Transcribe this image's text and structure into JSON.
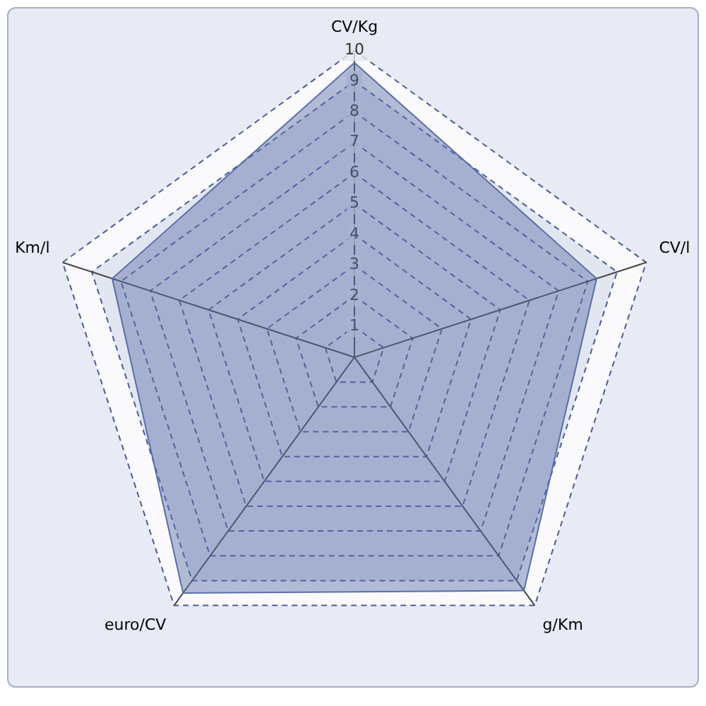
{
  "chart_data": {
    "type": "radar",
    "categories": [
      "CV/Kg",
      "CV/l",
      "g/Km",
      "euro/CV",
      "Km/l"
    ],
    "series": [
      {
        "color": "#5a6ea8",
        "values": [
          9.6,
          8.3,
          9.4,
          9.5,
          8.3
        ]
      }
    ],
    "ylim": [
      0,
      10
    ],
    "yticks": [
      1,
      2,
      3,
      4,
      5,
      6,
      7,
      8,
      9,
      10
    ],
    "grid": true,
    "line_style": "dashed",
    "legend": false,
    "marker": "none"
  }
}
